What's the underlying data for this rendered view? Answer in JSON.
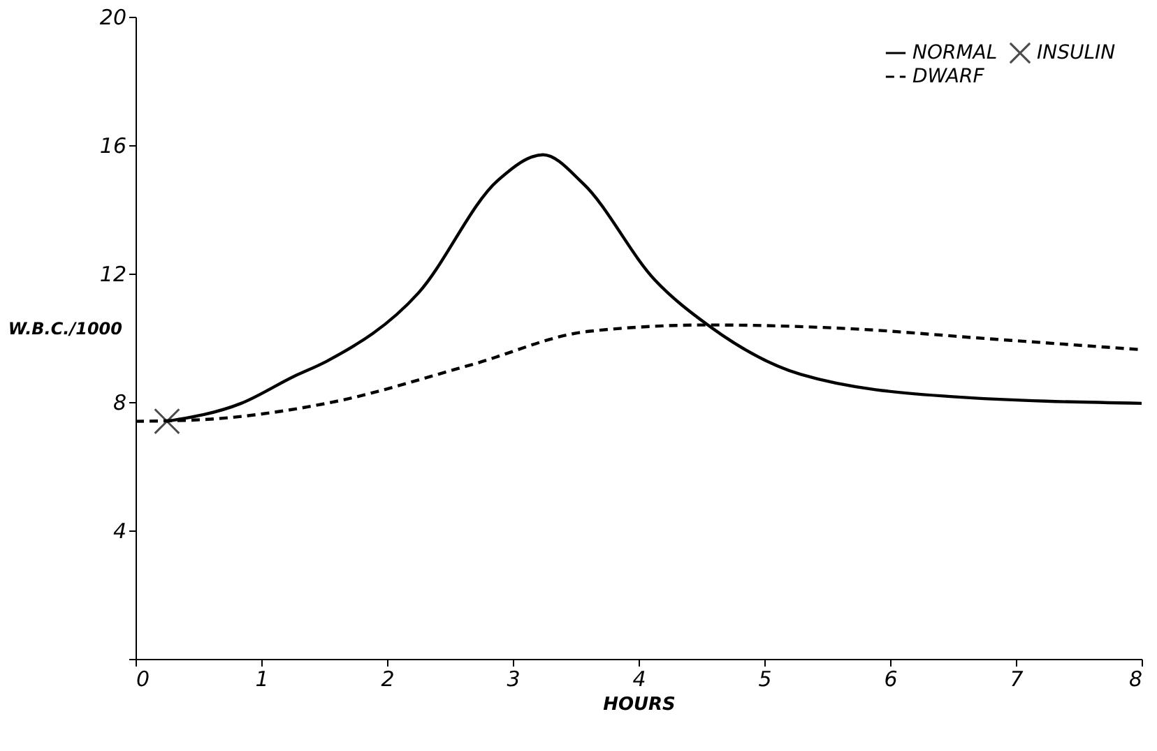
{
  "chart_data": {
    "type": "line",
    "xlabel": "HOURS",
    "ylabel": "W.B.C./1000",
    "xlim": [
      0,
      8
    ],
    "ylim": [
      0,
      20
    ],
    "xticks": [
      0,
      1,
      2,
      3,
      4,
      5,
      6,
      7,
      8
    ],
    "yticks": [
      {
        "value": 0,
        "label": null
      },
      4,
      8,
      12,
      16,
      20
    ],
    "grid": false,
    "legend": "top right",
    "series": [
      {
        "name": "NORMAL",
        "line_style": "solid",
        "color": "#000000",
        "x": [
          0.25,
          0.84,
          1.26,
          1.52,
          2.25,
          2.88,
          3.24,
          3.56,
          4.13,
          4.55,
          5.29,
          6.48,
          8.0
        ],
        "values": [
          7.4,
          7.96,
          8.8,
          9.27,
          11.4,
          14.9,
          15.7,
          14.8,
          11.8,
          10.4,
          8.86,
          8.17,
          7.96
        ]
      },
      {
        "name": "DWARF",
        "line_style": "dashed",
        "color": "#000000",
        "x": [
          0,
          0.47,
          1.52,
          2.67,
          3.6,
          4.55,
          5.7,
          6.75,
          8.0
        ],
        "values": [
          7.4,
          7.44,
          7.96,
          9.16,
          10.2,
          10.4,
          10.28,
          9.98,
          9.63
        ]
      },
      {
        "name": "INSULIN",
        "type": "scatter",
        "marker": "cross",
        "color": "#000000",
        "x": [
          0.25
        ],
        "values": [
          7.4
        ]
      }
    ]
  }
}
